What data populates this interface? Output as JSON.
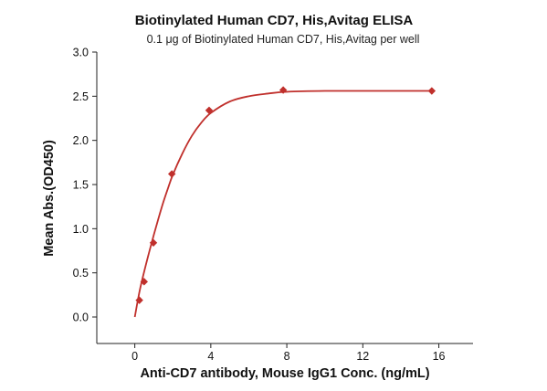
{
  "chart_data": {
    "type": "scatter",
    "title": "Biotinylated Human CD7, His,Avitag ELISA",
    "subtitle": "0.1 μg of Biotinylated Human CD7, His,Avitag per well",
    "xlabel": "Anti-CD7 antibody, Mouse IgG1 Conc. (ng/mL)",
    "ylabel": "Mean Abs.(OD450)",
    "xlim": [
      -2,
      17.8
    ],
    "ylim": [
      -0.3,
      3.0
    ],
    "xticks": [
      0,
      4,
      8,
      12,
      16
    ],
    "yticks": [
      0.0,
      0.5,
      1.0,
      1.5,
      2.0,
      2.5,
      3.0
    ],
    "x_tick_labels": [
      "0",
      "4",
      "8",
      "12",
      "16"
    ],
    "y_tick_labels": [
      "0.0",
      "0.5",
      "1.0",
      "1.5",
      "2.0",
      "2.5",
      "3.0"
    ],
    "grid": false,
    "color": "#c0302c",
    "points": {
      "x": [
        0.24,
        0.49,
        0.98,
        1.95,
        3.91,
        7.81,
        15.63
      ],
      "y": [
        0.19,
        0.4,
        0.84,
        1.62,
        2.34,
        2.57,
        2.56
      ]
    },
    "fit_curve": {
      "x": [
        0,
        0.25,
        0.5,
        0.75,
        1,
        1.25,
        1.5,
        1.75,
        2,
        2.5,
        3,
        3.5,
        4,
        5,
        6,
        7,
        8,
        10,
        12,
        14,
        15.63
      ],
      "y": [
        0.0,
        0.29,
        0.52,
        0.73,
        0.93,
        1.12,
        1.3,
        1.46,
        1.61,
        1.85,
        2.05,
        2.2,
        2.31,
        2.44,
        2.5,
        2.53,
        2.55,
        2.56,
        2.56,
        2.56,
        2.56
      ]
    }
  }
}
